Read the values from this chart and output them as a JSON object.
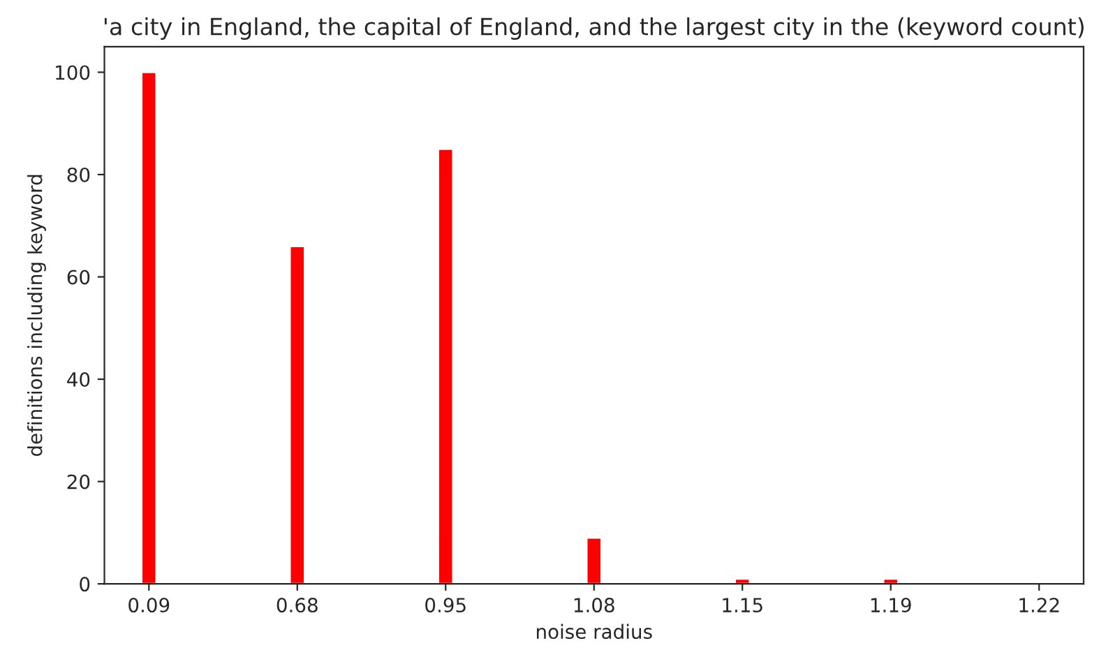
{
  "chart_data": {
    "type": "bar",
    "title": "'a city in England, the capital of England, and the largest city in the (keyword count)",
    "xlabel": "noise radius",
    "ylabel": "definitions including keyword",
    "categories": [
      "0.09",
      "0.68",
      "0.95",
      "1.08",
      "1.15",
      "1.19",
      "1.22"
    ],
    "values": [
      100,
      66,
      85,
      9,
      1,
      1,
      null
    ],
    "color": "#ff0000",
    "ylim": [
      0,
      105
    ],
    "yticks": [
      0,
      20,
      40,
      60,
      80,
      100
    ],
    "grid": false,
    "legend": false
  }
}
